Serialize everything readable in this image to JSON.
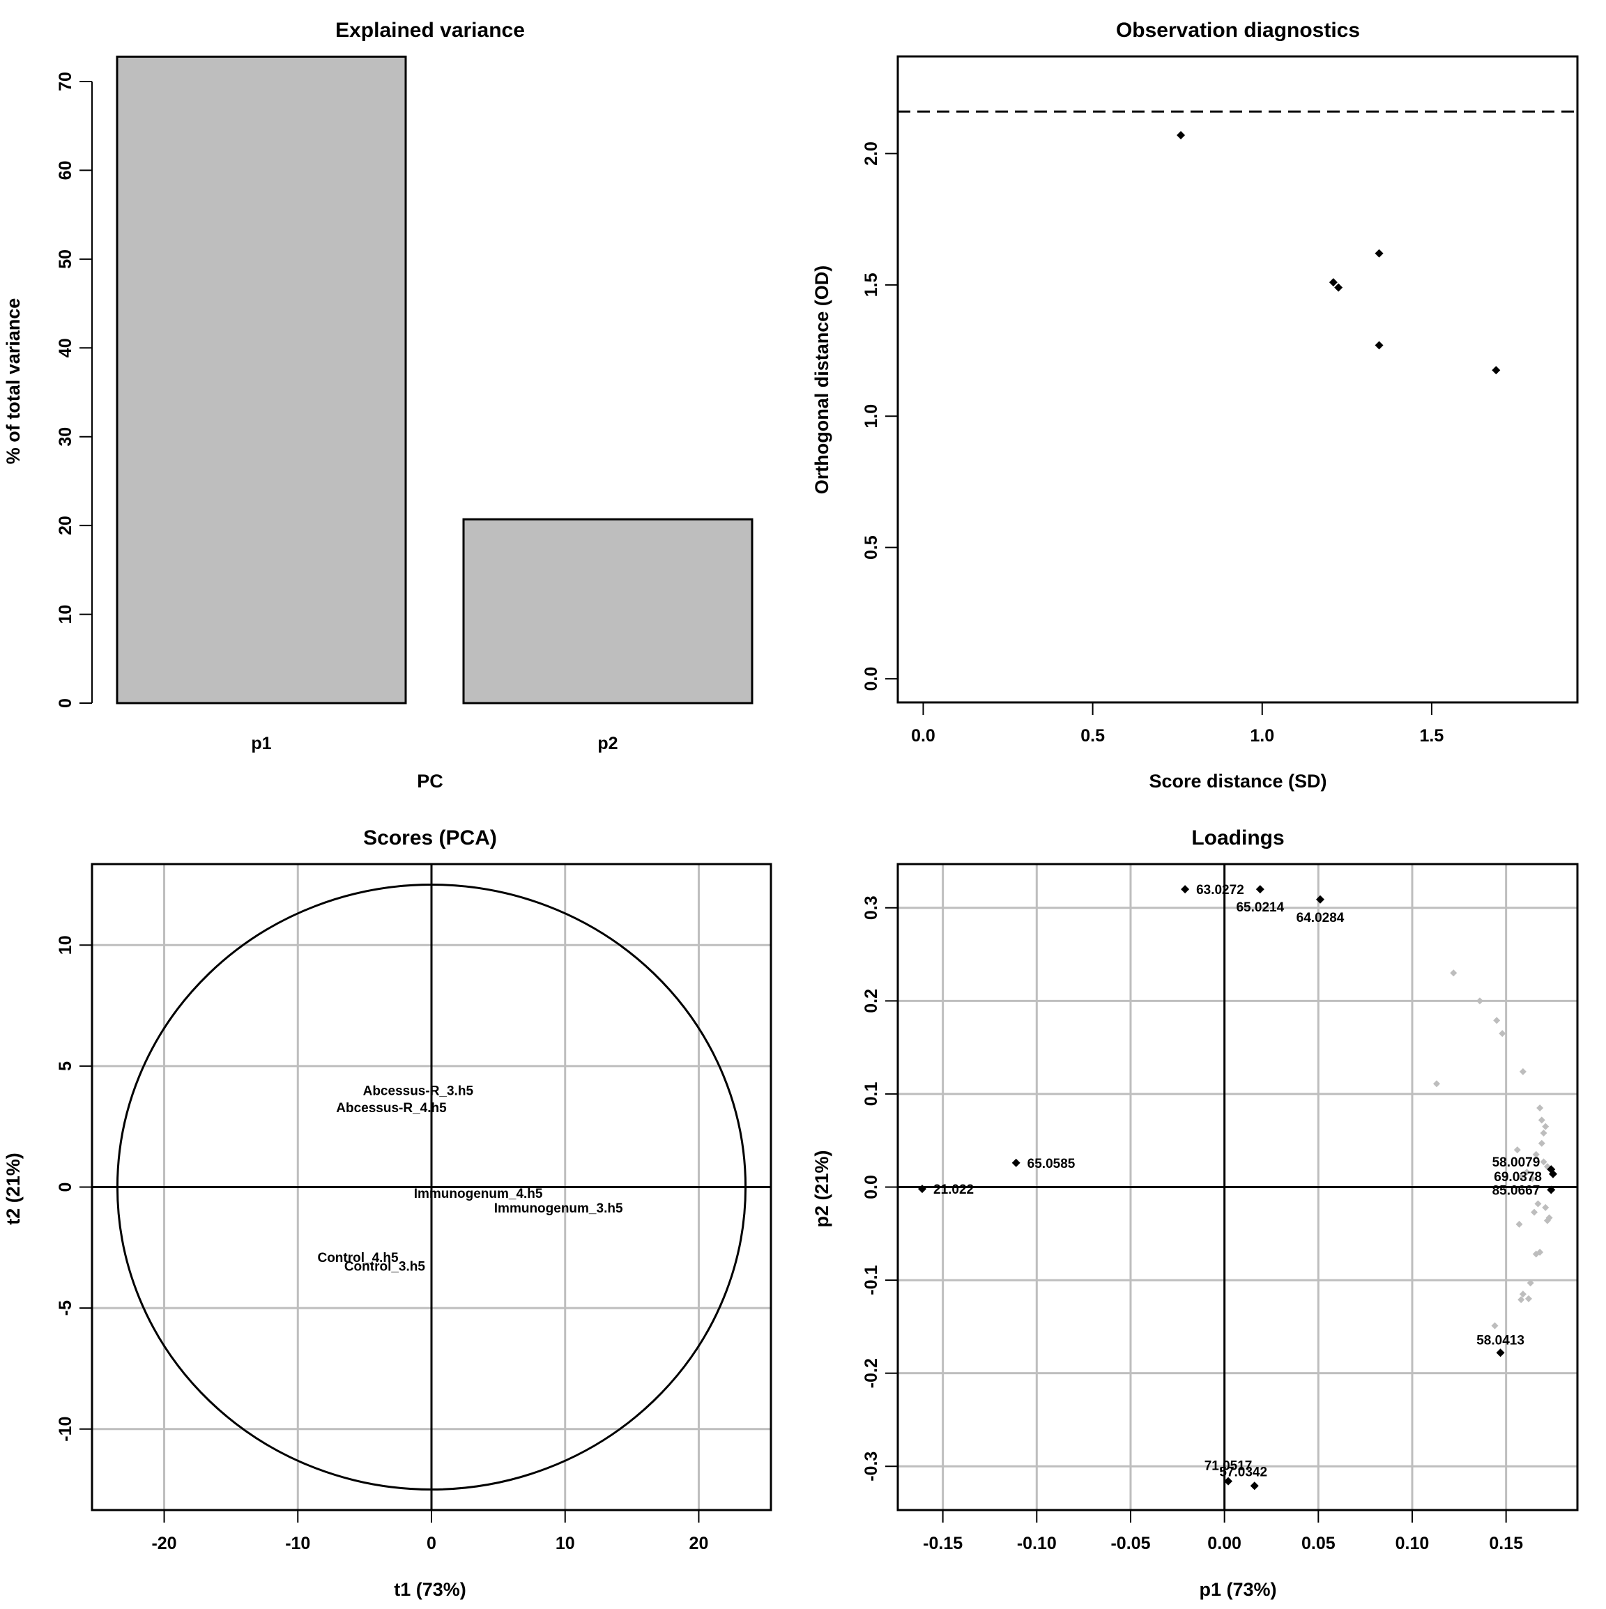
{
  "chart_data": [
    {
      "type": "bar",
      "title": "Explained variance",
      "xlabel": "PC",
      "ylabel": "% of total variance",
      "categories": [
        "p1",
        "p2"
      ],
      "values": [
        72.8,
        20.7
      ],
      "ylim": [
        0,
        70
      ],
      "yticks": [
        "0",
        "10",
        "20",
        "30",
        "40",
        "50",
        "60",
        "70"
      ],
      "bar_color": "#bebebe"
    },
    {
      "type": "scatter",
      "title": "Observation diagnostics",
      "xlabel": "Score distance (SD)",
      "ylabel": "Orthogonal distance (OD)",
      "xlim": [
        -0.075,
        1.93
      ],
      "ylim": [
        -0.09,
        2.37
      ],
      "xticks": [
        "0.0",
        "0.5",
        "1.0",
        "1.5"
      ],
      "yticks": [
        "0.0",
        "0.5",
        "1.0",
        "1.5",
        "2.0"
      ],
      "threshold_od": 2.16,
      "points": [
        {
          "x": 0.76,
          "y": 2.07
        },
        {
          "x": 1.21,
          "y": 1.51
        },
        {
          "x": 1.225,
          "y": 1.49
        },
        {
          "x": 1.345,
          "y": 1.62
        },
        {
          "x": 1.345,
          "y": 1.27
        },
        {
          "x": 1.69,
          "y": 1.175
        }
      ]
    },
    {
      "type": "scatter",
      "title": "Scores (PCA)",
      "xlabel": "t1 (73%)",
      "ylabel": "t2 (21%)",
      "xlim": [
        -25.4,
        25.4
      ],
      "ylim": [
        -13.35,
        13.35
      ],
      "xticks": [
        "-20",
        "-10",
        "0",
        "10",
        "20"
      ],
      "yticks": [
        "-10",
        "-5",
        "0",
        "5",
        "10"
      ],
      "ellipse": {
        "a": 23.5,
        "b": 12.5
      },
      "points": [
        {
          "label": "Abcessus-R_3.h5",
          "x": -1.0,
          "y": 4.0
        },
        {
          "label": "Abcessus-R_4.h5",
          "x": -3.0,
          "y": 3.3
        },
        {
          "label": "Immunogenum_4.h5",
          "x": 3.5,
          "y": -0.25
        },
        {
          "label": "Immunogenum_3.h5",
          "x": 9.5,
          "y": -0.85
        },
        {
          "label": "Control_4.h5",
          "x": -5.5,
          "y": -2.9
        },
        {
          "label": "Control_3.h5",
          "x": -3.5,
          "y": -3.25
        }
      ]
    },
    {
      "type": "scatter",
      "title": "Loadings",
      "xlabel": "p1 (73%)",
      "ylabel": "p2 (21%)",
      "xlim": [
        -0.174,
        0.188
      ],
      "ylim": [
        -0.347,
        0.347
      ],
      "xticks": [
        "-0.15",
        "-0.10",
        "-0.05",
        "0.00",
        "0.05",
        "0.10",
        "0.15"
      ],
      "yticks": [
        "-0.3",
        "-0.2",
        "-0.1",
        "0.0",
        "0.1",
        "0.2",
        "0.3"
      ],
      "highlighted_color": "#000000",
      "other_color": "#bdbdbd",
      "highlighted": [
        {
          "label": "63.0272",
          "x": -0.021,
          "y": 0.32
        },
        {
          "label": "65.0214",
          "x": 0.019,
          "y": 0.32
        },
        {
          "label": "64.0284",
          "x": 0.051,
          "y": 0.309
        },
        {
          "label": "65.0585",
          "x": -0.111,
          "y": 0.026
        },
        {
          "label": "21.022",
          "x": -0.161,
          "y": -0.002
        },
        {
          "label": "58.0079",
          "x": 0.174,
          "y": 0.019
        },
        {
          "label": "69.0378",
          "x": 0.175,
          "y": 0.014
        },
        {
          "label": "85.0667",
          "x": 0.174,
          "y": -0.003
        },
        {
          "label": "58.0413",
          "x": 0.147,
          "y": -0.178
        },
        {
          "label": "71.0517",
          "x": 0.002,
          "y": -0.316
        },
        {
          "label": "57.0342",
          "x": 0.016,
          "y": -0.321
        }
      ],
      "others": [
        {
          "x": 0.122,
          "y": 0.23
        },
        {
          "x": 0.136,
          "y": 0.2
        },
        {
          "x": 0.145,
          "y": 0.179
        },
        {
          "x": 0.148,
          "y": 0.165
        },
        {
          "x": 0.159,
          "y": 0.124
        },
        {
          "x": 0.113,
          "y": 0.111
        },
        {
          "x": 0.168,
          "y": 0.085
        },
        {
          "x": 0.169,
          "y": 0.072
        },
        {
          "x": 0.171,
          "y": 0.065
        },
        {
          "x": 0.17,
          "y": 0.058
        },
        {
          "x": 0.169,
          "y": 0.047
        },
        {
          "x": 0.156,
          "y": 0.04
        },
        {
          "x": 0.166,
          "y": 0.035
        },
        {
          "x": 0.17,
          "y": 0.027
        },
        {
          "x": 0.172,
          "y": 0.022
        },
        {
          "x": 0.161,
          "y": 0.016
        },
        {
          "x": 0.164,
          "y": 0.009
        },
        {
          "x": 0.158,
          "y": 0.011
        },
        {
          "x": 0.167,
          "y": -0.018
        },
        {
          "x": 0.171,
          "y": -0.022
        },
        {
          "x": 0.165,
          "y": -0.027
        },
        {
          "x": 0.173,
          "y": -0.033
        },
        {
          "x": 0.172,
          "y": -0.036
        },
        {
          "x": 0.157,
          "y": -0.04
        },
        {
          "x": 0.168,
          "y": -0.07
        },
        {
          "x": 0.166,
          "y": -0.072
        },
        {
          "x": 0.163,
          "y": -0.103
        },
        {
          "x": 0.159,
          "y": -0.115
        },
        {
          "x": 0.158,
          "y": -0.121
        },
        {
          "x": 0.162,
          "y": -0.12
        },
        {
          "x": 0.144,
          "y": -0.149
        }
      ]
    }
  ]
}
